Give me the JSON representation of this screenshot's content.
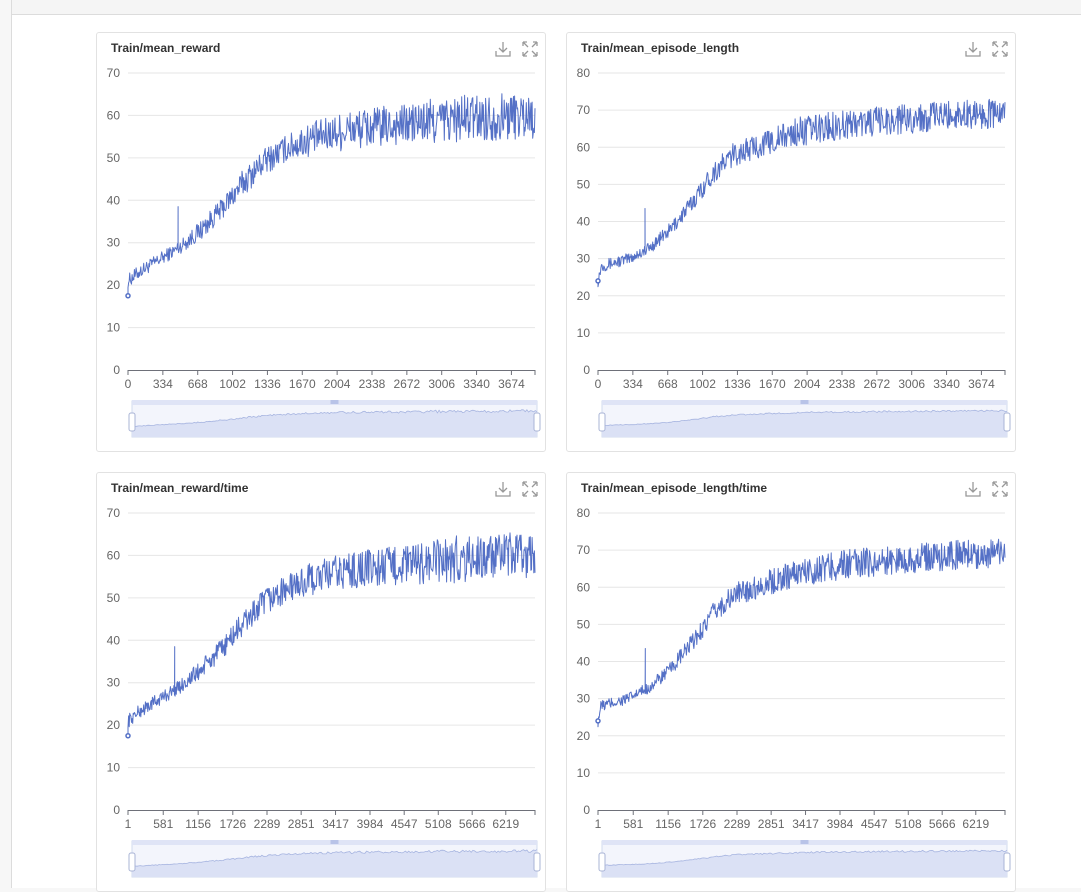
{
  "icons": {
    "download": "download-icon",
    "fullscreen": "fullscreen-icon"
  },
  "colors": {
    "series": "#5470c6",
    "slider_fill": "#dbe1f5",
    "grid": "#e6e6e6"
  },
  "charts": [
    {
      "title": "Train/mean_reward",
      "chart_data": {
        "type": "line",
        "title": "Train/mean_reward",
        "xlabel": "",
        "ylabel": "",
        "xlim": [
          0,
          3900
        ],
        "ylim": [
          0,
          70
        ],
        "y_ticks": [
          "0",
          "10",
          "20",
          "30",
          "40",
          "50",
          "60",
          "70"
        ],
        "x_ticks": [
          "0",
          "334",
          "668",
          "1002",
          "1336",
          "1670",
          "2004",
          "2338",
          "2672",
          "3006",
          "3340",
          "3674"
        ],
        "x_tick_values": [
          0,
          334,
          668,
          1002,
          1336,
          1670,
          2004,
          2338,
          2672,
          3006,
          3340,
          3674
        ],
        "grid": true,
        "legend": "none",
        "series": [
          {
            "start_point": [
              0,
              17.5
            ],
            "x": [
              0,
              100,
              300,
              500,
              700,
              900,
              1100,
              1300,
              1500,
              1700,
              1900,
              2100,
              2300,
              2500,
              2700,
              2900,
              3100,
              3300,
              3500,
              3700,
              3900
            ],
            "y": [
              21,
              23,
              26,
              29,
              33,
              38,
              44,
              49,
              52,
              54,
              55.5,
              56.5,
              57,
              57.5,
              58,
              58.5,
              59,
              59.5,
              59.5,
              60,
              60
            ],
            "noise": [
              1,
              1,
              1,
              1,
              1.5,
              1.5,
              2,
              2,
              2,
              2.5,
              2.5,
              3,
              3,
              3,
              3,
              3.5,
              3.5,
              3.5,
              3.5,
              3.5,
              3.5
            ],
            "spikes": [
              [
                480,
                38.5
              ]
            ]
          }
        ]
      }
    },
    {
      "title": "Train/mean_episode_length",
      "chart_data": {
        "type": "line",
        "title": "Train/mean_episode_length",
        "xlabel": "",
        "ylabel": "",
        "xlim": [
          0,
          3900
        ],
        "ylim": [
          0,
          80
        ],
        "y_ticks": [
          "0",
          "10",
          "20",
          "30",
          "40",
          "50",
          "60",
          "70",
          "80"
        ],
        "x_ticks": [
          "0",
          "334",
          "668",
          "1002",
          "1336",
          "1670",
          "2004",
          "2338",
          "2672",
          "3006",
          "3340",
          "3674"
        ],
        "x_tick_values": [
          0,
          334,
          668,
          1002,
          1336,
          1670,
          2004,
          2338,
          2672,
          3006,
          3340,
          3674
        ],
        "grid": true,
        "legend": "none",
        "series": [
          {
            "start_point": [
              0,
              24
            ],
            "x": [
              0,
              30,
              300,
              500,
              700,
              900,
              1100,
              1300,
              1500,
              1700,
              1900,
              2100,
              2300,
              2500,
              2700,
              2900,
              3100,
              3300,
              3500,
              3700,
              3900
            ],
            "y": [
              24,
              28,
              30,
              33,
              38,
              45,
              53,
              58,
              60,
              62,
              64,
              65,
              66,
              66.5,
              67,
              67.5,
              68,
              68.5,
              69,
              69,
              69
            ],
            "noise": [
              1,
              1,
              1,
              1,
              1.2,
              1.5,
              1.8,
              2,
              2,
              2.2,
              2.5,
              2.5,
              2.5,
              2.5,
              2.5,
              2.5,
              2.5,
              2.5,
              2.5,
              2.5,
              2.5
            ],
            "spikes": [
              [
                450,
                43.5
              ]
            ]
          }
        ]
      }
    },
    {
      "title": "Train/mean_reward/time",
      "chart_data": {
        "type": "line",
        "title": "Train/mean_reward/time",
        "xlabel": "",
        "ylabel": "",
        "xlim": [
          1,
          6700
        ],
        "ylim": [
          0,
          70
        ],
        "y_ticks": [
          "0",
          "10",
          "20",
          "30",
          "40",
          "50",
          "60",
          "70"
        ],
        "x_ticks": [
          "1",
          "581",
          "1156",
          "1726",
          "2289",
          "2851",
          "3417",
          "3984",
          "4547",
          "5108",
          "5666",
          "6219"
        ],
        "x_tick_values": [
          1,
          581,
          1156,
          1726,
          2289,
          2851,
          3417,
          3984,
          4547,
          5108,
          5666,
          6219
        ],
        "grid": true,
        "legend": "none",
        "series": [
          {
            "start_point": [
              1,
              17.5
            ],
            "x": [
              1,
              170,
              500,
              850,
              1200,
              1550,
              1900,
              2250,
              2600,
              2950,
              3300,
              3650,
              4000,
              4350,
              4700,
              5050,
              5400,
              5750,
              6100,
              6450,
              6700
            ],
            "y": [
              21,
              23,
              26,
              29,
              33,
              38,
              44,
              49,
              52,
              54,
              55.5,
              56.5,
              57,
              57.5,
              58,
              58.5,
              59,
              59.5,
              59.5,
              60,
              60
            ],
            "noise": [
              1,
              1,
              1,
              1,
              1.5,
              1.5,
              2,
              2,
              2,
              2.5,
              2.5,
              3,
              3,
              3,
              3,
              3.5,
              3.5,
              3.5,
              3.5,
              3.5,
              3.5
            ],
            "spikes": [
              [
                770,
                38.5
              ]
            ]
          }
        ]
      }
    },
    {
      "title": "Train/mean_episode_length/time",
      "chart_data": {
        "type": "line",
        "title": "Train/mean_episode_length/time",
        "xlabel": "",
        "ylabel": "",
        "xlim": [
          1,
          6700
        ],
        "ylim": [
          0,
          80
        ],
        "y_ticks": [
          "0",
          "10",
          "20",
          "30",
          "40",
          "50",
          "60",
          "70",
          "80"
        ],
        "x_ticks": [
          "1",
          "581",
          "1156",
          "1726",
          "2289",
          "2851",
          "3417",
          "3984",
          "4547",
          "5108",
          "5666",
          "6219"
        ],
        "x_tick_values": [
          1,
          581,
          1156,
          1726,
          2289,
          2851,
          3417,
          3984,
          4547,
          5108,
          5666,
          6219
        ],
        "grid": true,
        "legend": "none",
        "series": [
          {
            "start_point": [
              1,
              24
            ],
            "x": [
              1,
              50,
              500,
              850,
              1200,
              1550,
              1900,
              2250,
              2600,
              2950,
              3300,
              3650,
              4000,
              4350,
              4700,
              5050,
              5400,
              5750,
              6100,
              6450,
              6700
            ],
            "y": [
              24,
              28,
              30,
              33,
              38,
              45,
              53,
              58,
              60,
              62,
              64,
              65,
              66,
              66.5,
              67,
              67.5,
              68,
              68.5,
              69,
              69,
              69
            ],
            "noise": [
              1,
              1,
              1,
              1,
              1.2,
              1.5,
              1.8,
              2,
              2,
              2.2,
              2.5,
              2.5,
              2.5,
              2.5,
              2.5,
              2.5,
              2.5,
              2.5,
              2.5,
              2.5,
              2.5
            ],
            "spikes": [
              [
                780,
                43.5
              ]
            ]
          }
        ]
      }
    }
  ]
}
